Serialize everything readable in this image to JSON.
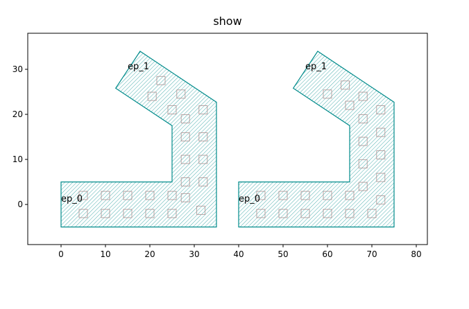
{
  "chart_data": {
    "type": "shapes",
    "title": "show",
    "xlim": [
      -7.5,
      82.5
    ],
    "ylim": [
      -8.9,
      38
    ],
    "xticks": [
      0,
      10,
      20,
      30,
      40,
      50,
      60,
      70,
      80
    ],
    "yticks": [
      0,
      10,
      20,
      30
    ],
    "polygons": [
      {
        "color": "#008b8b",
        "x": [
          0,
          35,
          35,
          17.8,
          12.3,
          25,
          25,
          0
        ],
        "y": [
          -5,
          -5,
          22.7,
          34,
          25.8,
          17.5,
          5,
          5
        ]
      },
      {
        "color": "#008b8b",
        "x": [
          40,
          75,
          75,
          57.8,
          52.3,
          65,
          65,
          40
        ],
        "y": [
          -5,
          -5,
          22.7,
          34,
          25.8,
          17.5,
          5,
          5
        ]
      }
    ],
    "markers": {
      "color": "#b09a9a",
      "x": [
        5,
        10,
        15,
        20,
        25,
        5,
        10,
        15,
        20,
        25,
        28,
        31.5,
        28,
        32,
        28,
        32,
        28,
        32,
        28,
        32,
        25,
        20.5,
        27,
        22.5,
        45,
        50,
        55,
        60,
        65,
        70,
        45,
        50,
        55,
        60,
        65,
        72,
        68,
        72,
        68,
        72,
        68,
        72,
        68,
        72,
        68,
        65,
        60,
        64
      ],
      "y": [
        -2,
        -2,
        -2,
        -2,
        -2,
        2,
        2,
        2,
        2,
        2,
        1.5,
        -1.3,
        5,
        5,
        10,
        10,
        15,
        15,
        19,
        21,
        21,
        24,
        24.5,
        27.5,
        -2,
        -2,
        -2,
        -2,
        -2,
        -2,
        2,
        2,
        2,
        2,
        2,
        1,
        4,
        6,
        9,
        11,
        14,
        16,
        19,
        21,
        24,
        22,
        24.5,
        26.5
      ]
    },
    "annotations": [
      {
        "text": "ep_0",
        "x": 0,
        "y": 0.6
      },
      {
        "text": "ep_1",
        "x": 15,
        "y": 30
      },
      {
        "text": "ep_0",
        "x": 40,
        "y": 0.6
      },
      {
        "text": "ep_1",
        "x": 55,
        "y": 30
      }
    ]
  }
}
